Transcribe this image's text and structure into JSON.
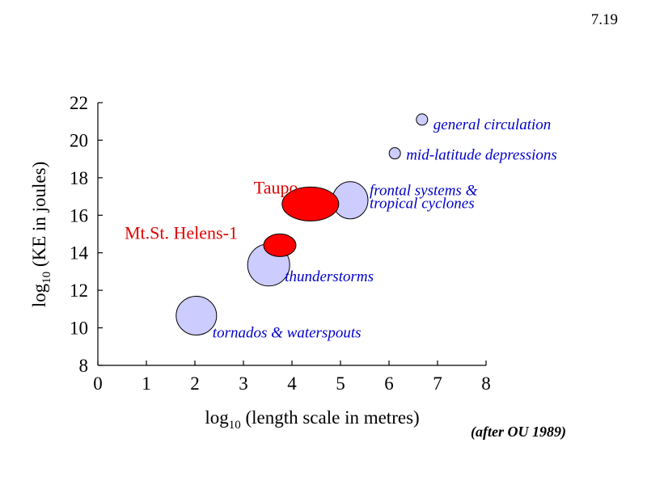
{
  "figure_number": "7.19",
  "source_note": "(after OU 1989)",
  "colors": {
    "phenomenon_fill": "#ccccff",
    "volcano_fill": "#ff0000",
    "phenomenon_text": "#0000c8",
    "volcano_text": "#e00000"
  },
  "chart_data": {
    "type": "scatter",
    "title": "",
    "xlabel_prefix": "log",
    "xlabel_sub": "10",
    "xlabel_rest": " (length scale in metres)",
    "ylabel_prefix": "log",
    "ylabel_sub": "10",
    "ylabel_rest": " (KE in joules)",
    "xlim": [
      0,
      8
    ],
    "ylim": [
      8,
      22
    ],
    "xticks": [
      "0",
      "1",
      "2",
      "3",
      "4",
      "5",
      "6",
      "7",
      "8"
    ],
    "yticks": [
      "8",
      "10",
      "12",
      "14",
      "16",
      "18",
      "20",
      "22"
    ],
    "grid": false,
    "points": [
      {
        "label": "general circulation",
        "label2": "",
        "x": 6.68,
        "y": 21.1,
        "kind": "phenomenon"
      },
      {
        "label": "mid-latitude depressions",
        "label2": "",
        "x": 6.12,
        "y": 19.3,
        "kind": "phenomenon"
      },
      {
        "label": "frontal systems &",
        "label2": "tropical cyclones",
        "x": 5.2,
        "y": 16.8,
        "kind": "phenomenon"
      },
      {
        "label": "thunderstorms",
        "label2": "",
        "x": 3.52,
        "y": 13.35,
        "kind": "phenomenon"
      },
      {
        "label": "tornados & waterspouts",
        "label2": "",
        "x": 2.03,
        "y": 10.65,
        "kind": "phenomenon"
      },
      {
        "label": "Taupo",
        "label2": "",
        "x": 4.38,
        "y": 16.6,
        "kind": "volcano"
      },
      {
        "label": "Mt.St. Helens-1",
        "label2": "",
        "x": 3.75,
        "y": 14.4,
        "kind": "volcano"
      }
    ]
  }
}
